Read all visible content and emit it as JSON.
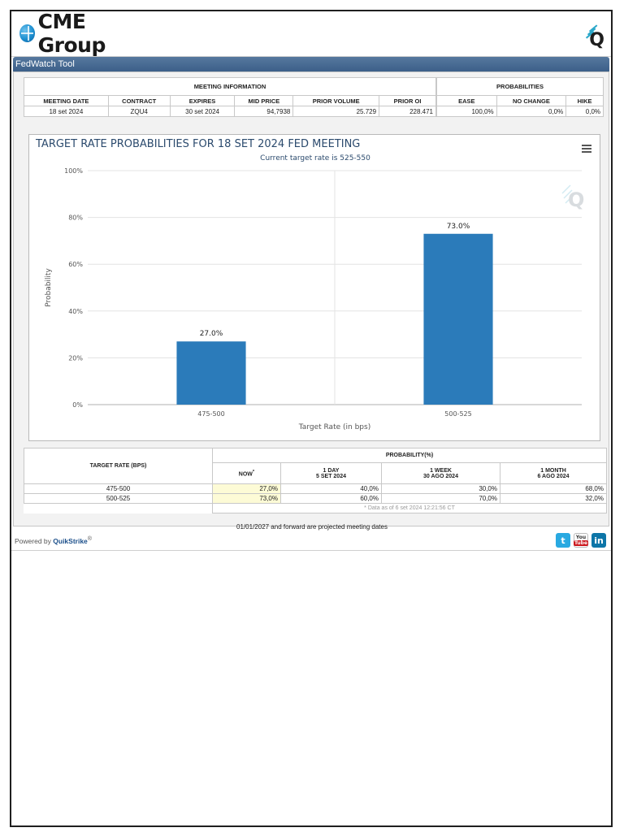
{
  "brand": {
    "logo_text": "CME Group"
  },
  "window": {
    "title": "FedWatch Tool"
  },
  "meeting_info": {
    "group_label": "MEETING INFORMATION",
    "columns": [
      "MEETING DATE",
      "CONTRACT",
      "EXPIRES",
      "MID PRICE",
      "PRIOR VOLUME",
      "PRIOR OI"
    ],
    "values": [
      "18 set 2024",
      "ZQU4",
      "30 set 2024",
      "94,7938",
      "25.729",
      "228.471"
    ]
  },
  "probabilities": {
    "group_label": "PROBABILITIES",
    "columns": [
      "EASE",
      "NO CHANGE",
      "HIKE"
    ],
    "values": [
      "100,0%",
      "0,0%",
      "0,0%"
    ]
  },
  "chart": {
    "menu_icon": "hamburger-menu-icon",
    "watermark_icon": "quikstrike-q-icon"
  },
  "chart_data": {
    "type": "bar",
    "title": "TARGET RATE PROBABILITIES FOR 18 SET 2024 FED MEETING",
    "subtitle": "Current target rate is 525-550",
    "xlabel": "Target Rate (in bps)",
    "ylabel": "Probability",
    "categories": [
      "475-500",
      "500-525"
    ],
    "values": [
      27.0,
      73.0
    ],
    "data_labels": [
      "27.0%",
      "73.0%"
    ],
    "yticks": [
      "0%",
      "20%",
      "40%",
      "60%",
      "80%",
      "100%"
    ],
    "ylim": [
      0,
      100
    ],
    "grid": true,
    "color": "#2b7bba"
  },
  "rate_table": {
    "target_rate_header": "TARGET RATE (BPS)",
    "probability_header": "PROBABILITY(%)",
    "now_label": "NOW",
    "now_mark": "*",
    "columns": [
      {
        "top": "1 DAY",
        "bottom": "5 SET 2024"
      },
      {
        "top": "1 WEEK",
        "bottom": "30 AGO 2024"
      },
      {
        "top": "1 MONTH",
        "bottom": "6 AGO 2024"
      }
    ],
    "rows": [
      {
        "rate": "475-500",
        "now": "27,0%",
        "day": "40,0%",
        "week": "30,0%",
        "month": "68,0%"
      },
      {
        "rate": "500-525",
        "now": "73,0%",
        "day": "60,0%",
        "week": "70,0%",
        "month": "32,0%"
      }
    ],
    "note": "* Data as of 6 set 2024 12:21:56 CT"
  },
  "projected_note": "01/01/2027 and forward are projected meeting dates",
  "footer": {
    "powered_by": "Powered by",
    "provider": "QuikStrike",
    "reg": "®",
    "social": [
      {
        "name": "twitter",
        "glyph": "t"
      },
      {
        "name": "youtube",
        "top": "You",
        "bottom": "Tube"
      },
      {
        "name": "linkedin",
        "glyph": "in"
      }
    ]
  }
}
